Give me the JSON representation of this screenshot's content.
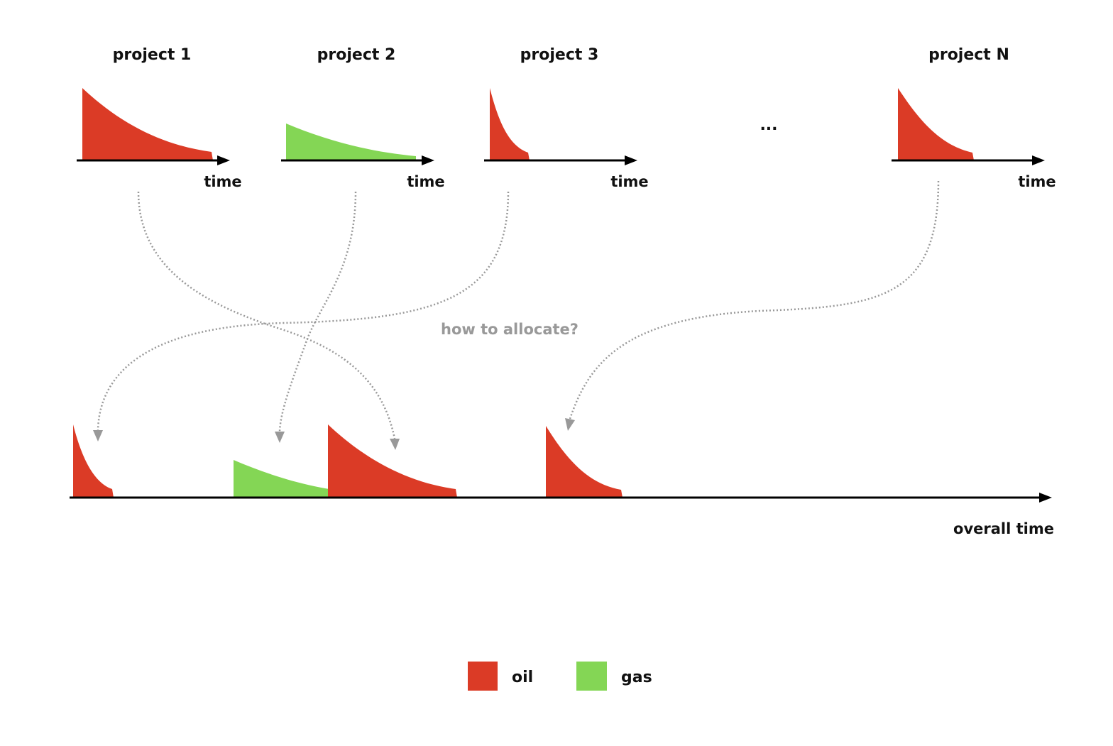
{
  "colors": {
    "oil": "#db3b26",
    "gas": "#84d655",
    "axis": "#000000",
    "dotted": "#999999"
  },
  "projects": [
    {
      "label": "project 1",
      "axis_label": "time",
      "fluid": "oil"
    },
    {
      "label": "project 2",
      "axis_label": "time",
      "fluid": "gas"
    },
    {
      "label": "project 3",
      "axis_label": "time",
      "fluid": "oil"
    },
    {
      "label": "project N",
      "axis_label": "time",
      "fluid": "oil"
    }
  ],
  "ellipsis": "...",
  "question": "how to allocate?",
  "overall": {
    "axis_label": "overall time",
    "allocations": [
      {
        "from_project": "project 3",
        "fluid": "oil"
      },
      {
        "from_project": "project 2",
        "fluid": "gas"
      },
      {
        "from_project": "project 1",
        "fluid": "oil"
      },
      {
        "from_project": "project N",
        "fluid": "oil"
      }
    ]
  },
  "legend": [
    {
      "label": "oil",
      "fluid": "oil"
    },
    {
      "label": "gas",
      "fluid": "gas"
    }
  ]
}
